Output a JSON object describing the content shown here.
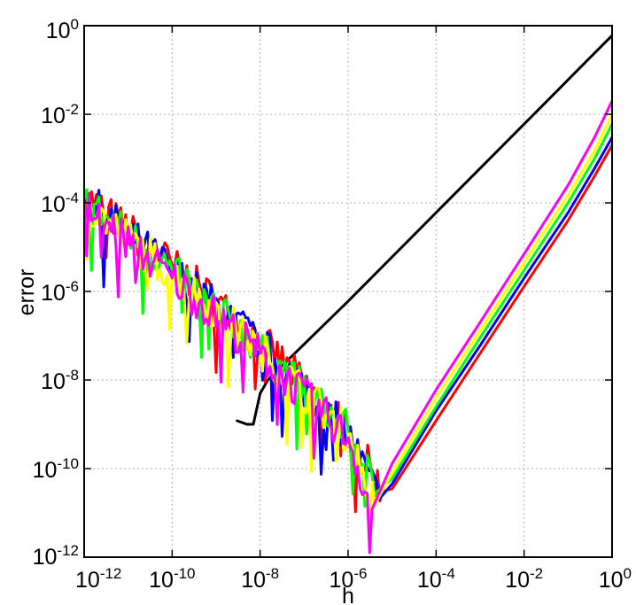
{
  "chart_data": {
    "type": "line",
    "title": "",
    "xlabel": "h",
    "ylabel": "error",
    "xscale": "log",
    "yscale": "log",
    "xlim": [
      1e-12,
      1
    ],
    "ylim": [
      1e-12,
      1
    ],
    "grid": true,
    "legend": "none",
    "x_ticks": [
      {
        "base": "10",
        "exp": "-12"
      },
      {
        "base": "10",
        "exp": "-10"
      },
      {
        "base": "10",
        "exp": "-8"
      },
      {
        "base": "10",
        "exp": "-6"
      },
      {
        "base": "10",
        "exp": "-4"
      },
      {
        "base": "10",
        "exp": "-2"
      },
      {
        "base": "10",
        "exp": "0"
      }
    ],
    "y_ticks": [
      {
        "base": "10",
        "exp": "-12"
      },
      {
        "base": "10",
        "exp": "-10"
      },
      {
        "base": "10",
        "exp": "-8"
      },
      {
        "base": "10",
        "exp": "-6"
      },
      {
        "base": "10",
        "exp": "-4"
      },
      {
        "base": "10",
        "exp": "-2"
      },
      {
        "base": "10",
        "exp": "0"
      }
    ],
    "series": [
      {
        "color": "#000000",
        "x": [
          3e-09,
          5e-09,
          7e-09,
          1e-08,
          1.5e-08,
          3e-08,
          1e-06,
          0.0001,
          0.01,
          0.1,
          0.3,
          1
        ],
        "y": [
          1.2e-09,
          1e-09,
          1e-09,
          5e-09,
          1e-08,
          2e-08,
          6e-07,
          6e-05,
          0.006,
          0.06,
          0.18,
          0.6
        ]
      },
      {
        "color": "#ff0000",
        "x": [
          1e-12,
          1e-10,
          1e-08,
          1e-06,
          6e-06,
          1e-05,
          0.0001,
          0.001,
          0.01,
          0.1,
          0.4,
          1
        ],
        "y": [
          0.00015,
          4e-06,
          8e-08,
          8e-10,
          3e-11,
          3.5e-11,
          1.2e-09,
          4e-08,
          1.3e-06,
          4e-05,
          0.0004,
          0.002
        ]
      },
      {
        "color": "#0000ff",
        "x": [
          1e-12,
          1e-10,
          1e-08,
          1e-06,
          5e-06,
          1e-05,
          0.0001,
          0.001,
          0.01,
          0.1,
          0.4,
          1
        ],
        "y": [
          0.00013,
          3e-06,
          7e-08,
          6e-10,
          2e-11,
          4.5e-11,
          2e-09,
          6e-08,
          2e-06,
          6e-05,
          0.0006,
          0.003
        ]
      },
      {
        "color": "#00ff00",
        "x": [
          1e-12,
          1e-10,
          1e-08,
          1e-06,
          4.5e-06,
          1e-05,
          0.0001,
          0.001,
          0.01,
          0.1,
          0.4,
          1
        ],
        "y": [
          0.00012,
          3e-06,
          5e-08,
          7e-10,
          3e-11,
          6e-11,
          2.5e-09,
          9e-08,
          3e-06,
          0.0001,
          0.001,
          0.006
        ]
      },
      {
        "color": "#ffff00",
        "x": [
          1e-12,
          1e-10,
          1e-08,
          1e-06,
          4e-06,
          1e-05,
          0.0001,
          0.001,
          0.01,
          0.1,
          0.4,
          1
        ],
        "y": [
          0.0001,
          2.5e-06,
          5e-08,
          6e-10,
          1.5e-11,
          8e-11,
          4e-09,
          1.3e-07,
          4.5e-06,
          0.00015,
          0.0015,
          0.01
        ]
      },
      {
        "color": "#ff00ff",
        "x": [
          1e-12,
          1e-10,
          1e-08,
          1e-06,
          3.5e-06,
          1e-05,
          0.0001,
          0.001,
          0.01,
          0.1,
          0.4,
          1
        ],
        "y": [
          9e-05,
          2e-06,
          4e-08,
          5e-10,
          1.2e-11,
          1.3e-10,
          6e-09,
          2e-07,
          7e-06,
          0.00025,
          0.003,
          0.02
        ]
      }
    ]
  }
}
